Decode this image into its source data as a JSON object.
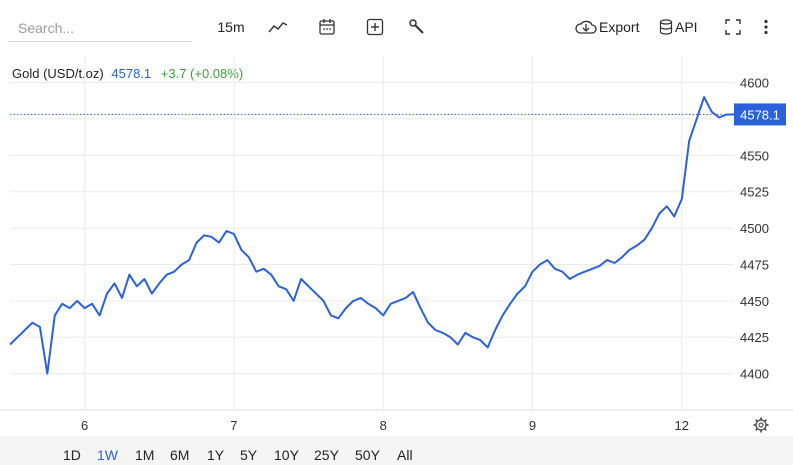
{
  "toolbar": {
    "search_placeholder": "Search...",
    "interval_label": "15m",
    "export_label": "Export",
    "api_label": "API",
    "icons": [
      "line-chart-icon",
      "calendar-icon",
      "add-indicator-icon",
      "wrench-icon",
      "cloud-download-icon",
      "database-icon",
      "fullscreen-icon",
      "more-vertical-icon"
    ]
  },
  "legend": {
    "name": "Gold (USD/t.oz)",
    "price": "4578.1",
    "change": "+3.7 (+0.08%)"
  },
  "ranges": [
    "1D",
    "1W",
    "1M",
    "6M",
    "1Y",
    "5Y",
    "10Y",
    "25Y",
    "50Y",
    "All"
  ],
  "active_range": "1W",
  "colors": {
    "line": "#2b62dc",
    "positive": "#3aa53a",
    "grid": "#ebebeb",
    "price_tag": "#2b62dc"
  },
  "chart_data": {
    "type": "line",
    "title": "",
    "xlabel": "",
    "ylabel": "",
    "x_ticks": [
      {
        "label": "6",
        "pos": 0.5
      },
      {
        "label": "7",
        "pos": 1.5
      },
      {
        "label": "8",
        "pos": 2.5
      },
      {
        "label": "9",
        "pos": 3.5
      },
      {
        "label": "12",
        "pos": 4.5
      }
    ],
    "x_range": [
      0.0,
      4.85
    ],
    "y_ticks": [
      4400,
      4425,
      4450,
      4475,
      4500,
      4525,
      4550,
      4575,
      4600
    ],
    "y_tick_labels": [
      "4400",
      "4425",
      "4450",
      "4475",
      "4500",
      "4525",
      "4550",
      "",
      "4600"
    ],
    "ylim": [
      4375,
      4610
    ],
    "last_price": 4578.1,
    "last_price_label": "4578.1",
    "grid": true,
    "series": [
      {
        "x": [
          0.0,
          0.05,
          0.1,
          0.15,
          0.2,
          0.25,
          0.3,
          0.35,
          0.4,
          0.45,
          0.5,
          0.55,
          0.6,
          0.65,
          0.7,
          0.75,
          0.8,
          0.85,
          0.9,
          0.95,
          1.0,
          1.05,
          1.1,
          1.15,
          1.2,
          1.25,
          1.3,
          1.35,
          1.4,
          1.45,
          1.5,
          1.55,
          1.6,
          1.65,
          1.7,
          1.75,
          1.8,
          1.85,
          1.9,
          1.95,
          2.0,
          2.05,
          2.1,
          2.15,
          2.2,
          2.25,
          2.3,
          2.35,
          2.4,
          2.45,
          2.5,
          2.55,
          2.6,
          2.65,
          2.7,
          2.75,
          2.8,
          2.85,
          2.9,
          2.95,
          3.0,
          3.05,
          3.1,
          3.15,
          3.2,
          3.25,
          3.3,
          3.35,
          3.4,
          3.45,
          3.5,
          3.55,
          3.6,
          3.65,
          3.7,
          3.75,
          3.8,
          3.85,
          3.9,
          3.95,
          4.0,
          4.05,
          4.1,
          4.15,
          4.2,
          4.25,
          4.3,
          4.35,
          4.4,
          4.45,
          4.5,
          4.55,
          4.6,
          4.65,
          4.7,
          4.75,
          4.8,
          4.85
        ],
        "y": [
          4420,
          4425,
          4430,
          4435,
          4432,
          4400,
          4440,
          4448,
          4445,
          4450,
          4445,
          4448,
          4440,
          4455,
          4462,
          4452,
          4468,
          4460,
          4465,
          4455,
          4462,
          4468,
          4470,
          4475,
          4478,
          4490,
          4495,
          4494,
          4490,
          4498,
          4496,
          4485,
          4480,
          4470,
          4472,
          4468,
          4460,
          4458,
          4450,
          4465,
          4460,
          4455,
          4450,
          4440,
          4438,
          4445,
          4450,
          4452,
          4448,
          4445,
          4440,
          4448,
          4450,
          4452,
          4456,
          4445,
          4435,
          4430,
          4428,
          4425,
          4420,
          4428,
          4425,
          4423,
          4418,
          4430,
          4440,
          4448,
          4455,
          4460,
          4470,
          4475,
          4478,
          4472,
          4470,
          4465,
          4468,
          4470,
          4472,
          4474,
          4478,
          4476,
          4480,
          4485,
          4488,
          4492,
          4500,
          4510,
          4515,
          4508,
          4520,
          4560,
          4575,
          4590,
          4580,
          4576,
          4578,
          4578.1
        ]
      }
    ]
  }
}
